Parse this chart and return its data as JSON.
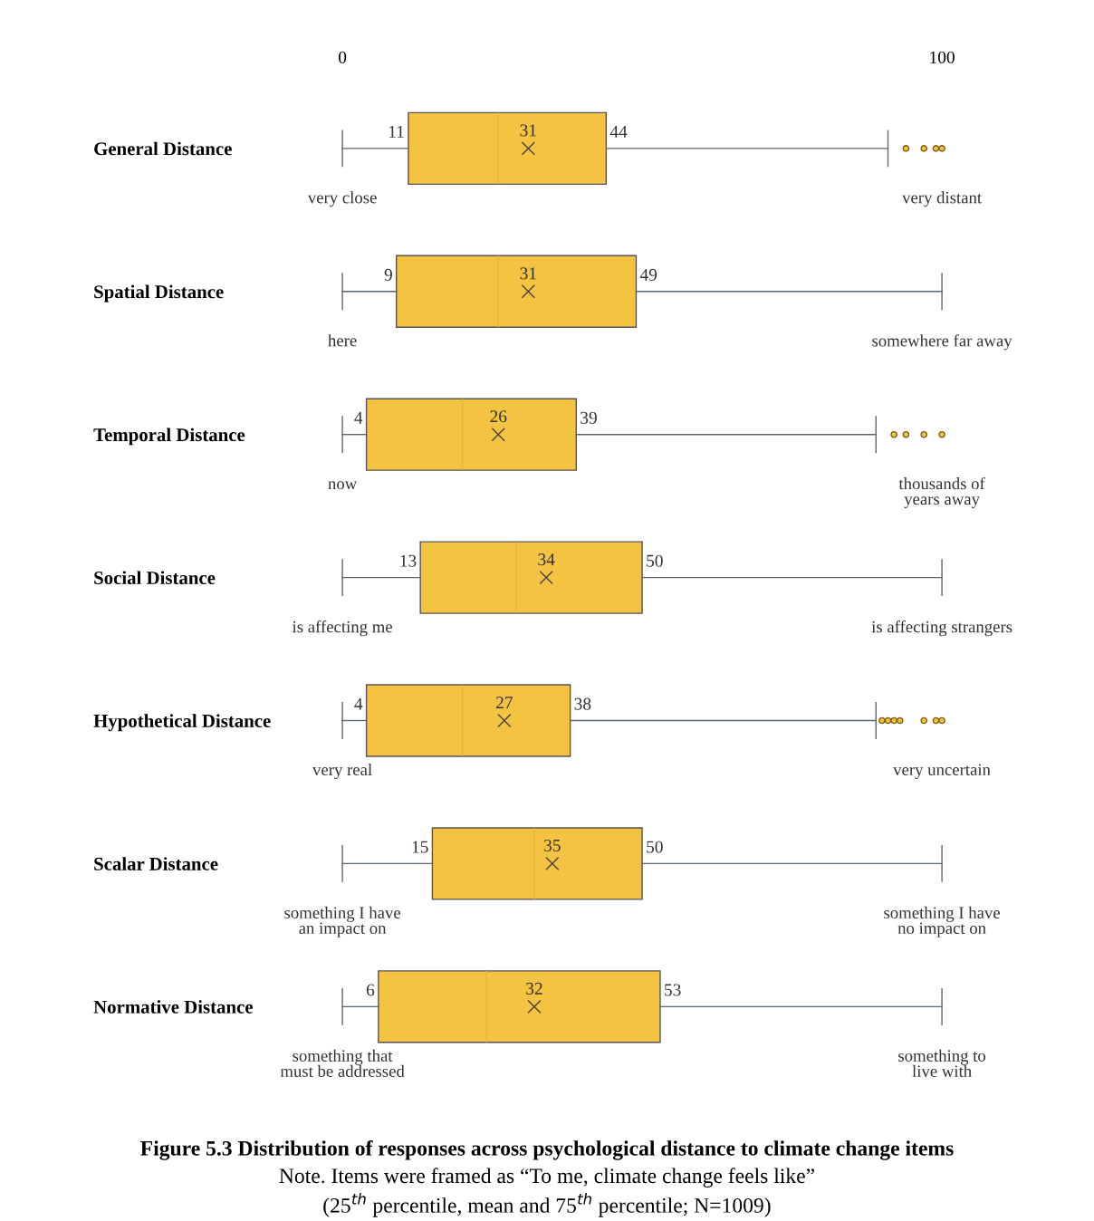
{
  "chart_data": {
    "type": "box",
    "orientation": "horizontal",
    "categories": [
      "General Distance",
      "Spatial Distance",
      "Temporal Distance",
      "Social Distance",
      "Hypothetical Distance",
      "Scalar Distance",
      "Normative Distance"
    ],
    "boxes": [
      {
        "low": 0,
        "q1": 11,
        "median": 26,
        "q3": 44,
        "high": 91,
        "mean": 31,
        "outliers": [
          94,
          97,
          99,
          100
        ]
      },
      {
        "low": 0,
        "q1": 9,
        "median": 26,
        "q3": 49,
        "high": 100,
        "mean": 31
      },
      {
        "low": 0,
        "q1": 4,
        "median": 20,
        "q3": 39,
        "high": 89,
        "mean": 26,
        "outliers": [
          92,
          94,
          97,
          100
        ]
      },
      {
        "low": 0,
        "q1": 13,
        "median": 29,
        "q3": 50,
        "high": 100,
        "mean": 34
      },
      {
        "low": 0,
        "q1": 4,
        "median": 20,
        "q3": 38,
        "high": 89,
        "mean": 27,
        "outliers": [
          90,
          91,
          92,
          93,
          97,
          99,
          100
        ]
      },
      {
        "low": 0,
        "q1": 15,
        "median": 32,
        "q3": 50,
        "high": 100,
        "mean": 35
      },
      {
        "low": 0,
        "q1": 6,
        "median": 24,
        "q3": 53,
        "high": 100,
        "mean": 32
      }
    ],
    "color": "#f5c342",
    "xlim": [
      0,
      100
    ],
    "xticks": [
      0,
      100
    ],
    "annotations": [
      {
        "text": "11",
        "x": 11,
        "y": "General Distance"
      },
      {
        "text": "44",
        "x": 44,
        "y": "General Distance"
      },
      {
        "text": "9",
        "x": 9,
        "y": "Spatial Distance"
      },
      {
        "text": "49",
        "x": 49,
        "y": "Spatial Distance"
      },
      {
        "text": "4",
        "x": 4,
        "y": "Temporal Distance"
      },
      {
        "text": "39",
        "x": 39,
        "y": "Temporal Distance"
      },
      {
        "text": "13",
        "x": 13,
        "y": "Social Distance"
      },
      {
        "text": "50",
        "x": 50,
        "y": "Social Distance"
      },
      {
        "text": "4",
        "x": 4,
        "y": "Hypothetical Distance"
      },
      {
        "text": "38",
        "x": 38,
        "y": "Hypothetical Distance"
      },
      {
        "text": "15",
        "x": 15,
        "y": "Scalar Distance"
      },
      {
        "text": "50",
        "x": 50,
        "y": "Scalar Distance"
      },
      {
        "text": "6",
        "x": 6,
        "y": "Normative Distance"
      },
      {
        "text": "53",
        "x": 53,
        "y": "Normative Distance"
      },
      "31",
      "31",
      "26",
      "34",
      "27",
      "35",
      "32",
      "very close",
      "very distant",
      "here",
      "somewhere far away",
      "now",
      "thousands of\nyears away",
      "is affecting me",
      "is affecting strangers",
      "very real",
      "very uncertain",
      "something I have\nan impact on",
      "something I have\nno impact on",
      "something that\nmust be addressed",
      "something to\nlive with",
      "Figure 5.3 Distribution of responses across psychological distance to climate change items",
      "Note. Items were framed as “To me, climate change feels like”",
      "(25$^{th}$ percentile, mean and 75$^{th}$ percentile; N=1009)"
    ]
  }
}
